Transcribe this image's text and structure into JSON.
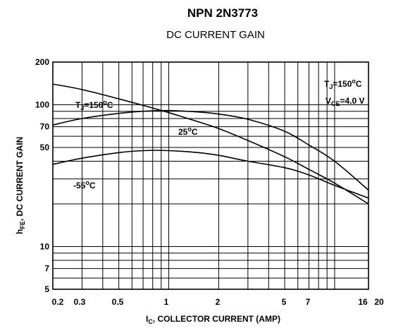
{
  "chart_data": {
    "type": "line",
    "title": "NPN 2N3773",
    "subtitle": "DC CURRENT GAIN",
    "xlabel": "I",
    "xlabel_sub": "C",
    "xlabel_rest": ", COLLECTOR CURRENT (AMP)",
    "ylabel": "h",
    "ylabel_sub": "FE",
    "ylabel_rest": ", DC CURRENT GAIN",
    "x_scale": "log",
    "y_scale": "log",
    "xlim": [
      0.2,
      20
    ],
    "ylim": [
      5,
      200
    ],
    "grid": true,
    "x_ticks": [
      {
        "value": 0.2,
        "label": "0.2"
      },
      {
        "value": 0.3,
        "label": "0.3"
      },
      {
        "value": 0.5,
        "label": "0.5"
      },
      {
        "value": 1,
        "label": "1"
      },
      {
        "value": 2,
        "label": "2"
      },
      {
        "value": 5,
        "label": "5"
      },
      {
        "value": 7,
        "label": "7"
      },
      {
        "value": 16,
        "label": "16"
      },
      {
        "value": 20,
        "label": "20"
      }
    ],
    "y_ticks": [
      {
        "value": 5,
        "label": "5"
      },
      {
        "value": 7,
        "label": "7"
      },
      {
        "value": 10,
        "label": "10"
      },
      {
        "value": 50,
        "label": "50"
      },
      {
        "value": 70,
        "label": "70"
      },
      {
        "value": 100,
        "label": "100"
      },
      {
        "value": 200,
        "label": "200"
      }
    ],
    "x_grid": [
      0.2,
      0.3,
      0.4,
      0.5,
      0.6,
      0.7,
      0.8,
      0.9,
      1,
      2,
      3,
      4,
      5,
      6,
      7,
      8,
      9,
      10,
      16
    ],
    "y_grid": [
      5,
      6,
      7,
      8,
      9,
      10,
      20,
      30,
      40,
      50,
      60,
      70,
      80,
      90,
      100
    ],
    "series": [
      {
        "name": "T_J=150°C",
        "x": [
          0.2,
          0.3,
          0.5,
          0.7,
          1,
          1.5,
          2,
          3,
          5,
          7,
          10,
          16
        ],
        "y": [
          140,
          128,
          110,
          99,
          88,
          76,
          68,
          56,
          43,
          35,
          28,
          20
        ]
      },
      {
        "name": "25°C",
        "x": [
          0.2,
          0.3,
          0.5,
          0.7,
          1,
          1.5,
          2,
          3,
          5,
          7,
          10,
          16
        ],
        "y": [
          72,
          80,
          87,
          90,
          91,
          89,
          86,
          79,
          65,
          52,
          40,
          25
        ]
      },
      {
        "name": "-55°C",
        "x": [
          0.2,
          0.3,
          0.5,
          0.7,
          1,
          1.5,
          2,
          3,
          5,
          7,
          10,
          16
        ],
        "y": [
          38,
          42,
          46,
          47.5,
          47.5,
          46,
          44,
          40,
          36,
          32,
          27,
          22
        ]
      }
    ],
    "annotations": [
      {
        "name": "tj-150-left",
        "parts": [
          "T",
          "J",
          "=150",
          "o",
          "C"
        ]
      },
      {
        "name": "25c-label",
        "parts": [
          "25",
          "o",
          "C"
        ]
      },
      {
        "name": "m55c-label",
        "parts": [
          "-55",
          "o",
          "C"
        ]
      },
      {
        "name": "tj-150-right",
        "parts": [
          "T",
          "J",
          "=150",
          "o",
          "C"
        ]
      },
      {
        "name": "vce-label",
        "parts": [
          "V",
          "CE",
          "=4.0 V"
        ]
      }
    ]
  }
}
